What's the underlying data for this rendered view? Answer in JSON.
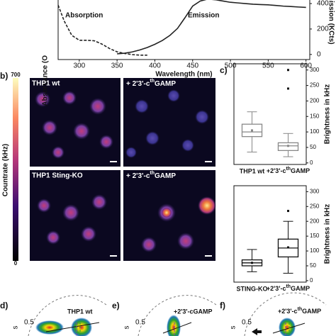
{
  "chart_data": [
    {
      "type": "line",
      "x_label": "Wavelength (nm)",
      "y_label": "Absorbance (O",
      "y2_label": "Emission (KCts)",
      "annotations": [
        "Absorption",
        "Emission"
      ],
      "x": [
        270,
        280,
        290,
        300,
        310,
        320,
        330,
        340,
        350,
        360,
        370,
        380,
        390,
        400,
        410,
        420,
        430,
        440,
        450,
        460,
        470,
        480,
        490,
        500,
        510,
        520,
        530,
        540,
        550,
        560,
        570,
        580,
        590,
        600
      ],
      "series": [
        {
          "name": "Absorption",
          "color": "#222",
          "dash": true,
          "values": [
            0.98,
            0.62,
            0.36,
            0.27,
            0.27,
            0.26,
            0.2,
            0.12,
            0.06,
            0.03,
            0.01,
            0,
            0,
            null,
            null,
            null,
            null,
            null,
            null,
            null,
            null,
            null,
            null,
            null,
            null,
            null,
            null,
            null,
            null,
            null,
            null,
            null,
            null,
            null
          ]
        },
        {
          "name": "Emission",
          "color": "#222",
          "axis": "y2",
          "values": [
            null,
            null,
            null,
            null,
            null,
            null,
            null,
            null,
            5,
            10,
            20,
            35,
            55,
            80,
            110,
            150,
            205,
            290,
            380,
            420,
            435,
            430,
            420,
            410,
            405,
            400,
            395,
            392,
            390,
            385,
            380,
            377,
            373,
            370
          ]
        }
      ],
      "xlim": [
        272,
        605
      ],
      "xticks": [
        300,
        350,
        400,
        450,
        500,
        550,
        600
      ],
      "ylim": [
        -0.08,
        1
      ],
      "y2lim": [
        -40,
        428
      ],
      "y2ticks": [
        0,
        200,
        400
      ]
    },
    {
      "type": "box",
      "y_label": "Brightness in kHz",
      "categories": [
        "THP1 wt",
        {
          "pre": "+2'3'-c",
          "sup": "th",
          "post": "GAMP"
        }
      ],
      "boxes": [
        {
          "whislo": 35,
          "q1": 85,
          "med": 100,
          "q3": 125,
          "whishi": 165,
          "mean": 105,
          "fliers": []
        },
        {
          "whislo": 20,
          "q1": 40,
          "med": 55,
          "q3": 65,
          "whishi": 95,
          "mean": 55,
          "fliers": [
            240,
            300
          ]
        }
      ],
      "color": "#888",
      "ylim": [
        -5,
        320
      ],
      "yticks": [
        0,
        50,
        100,
        150,
        200,
        250,
        300
      ]
    },
    {
      "type": "box",
      "y_label": "Brightness in kHz",
      "categories": [
        "STING-KO",
        {
          "pre": "+2'3'-c",
          "sup": "th",
          "post": "GAMP"
        }
      ],
      "boxes": [
        {
          "whislo": 30,
          "q1": 50,
          "med": 60,
          "q3": 70,
          "whishi": 105,
          "mean": 60,
          "fliers": []
        },
        {
          "whislo": 25,
          "q1": 80,
          "med": 110,
          "q3": 140,
          "whishi": 200,
          "mean": 112,
          "fliers": [
            235
          ]
        }
      ],
      "color": "#111",
      "ylim": [
        -5,
        320
      ],
      "yticks": [
        0,
        50,
        100,
        150,
        200,
        250,
        300
      ]
    }
  ],
  "panel_letters": [
    "b)",
    "c)",
    "d)",
    "e)",
    "f)"
  ],
  "colorbar": {
    "label": "Countrate (kHz)",
    "max": "700",
    "min": "0"
  },
  "images": [
    {
      "label": "THP1 wt"
    },
    {
      "label": {
        "pre": "+ 2'3'-c",
        "sup": "th",
        "post": "GAMP"
      }
    },
    {
      "label": "THP1 Sting-KO"
    },
    {
      "label": {
        "pre": "+ 2'3'-c",
        "sup": "th",
        "post": "GAMP"
      }
    }
  ],
  "phasors": [
    {
      "label": "THP1 wt",
      "ytick": "0.5",
      "ylabel": "s"
    },
    {
      "label": "+2'3'-cGAMP",
      "ytick": "0.5",
      "ylabel": "s"
    },
    {
      "label": {
        "pre": "+2'3'-c",
        "sup": "th",
        "post": "GAMP"
      },
      "ytick": "0.5",
      "ylabel": "s"
    }
  ]
}
